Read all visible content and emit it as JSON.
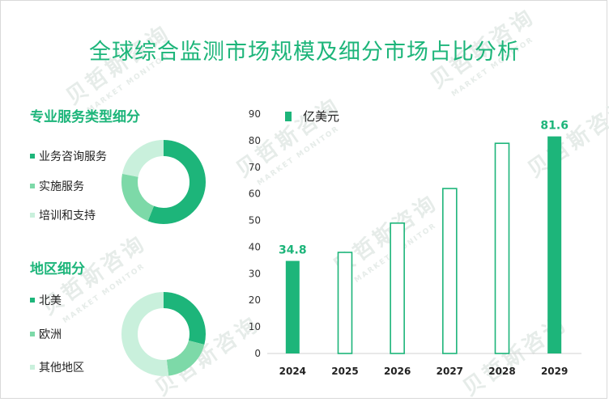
{
  "title": "全球综合监测市场规模及细分市场占比分析",
  "service_section": {
    "title": "专业服务类型细分",
    "items": [
      {
        "label": "业务咨询服务",
        "color": "#1db57a",
        "share": 0.56
      },
      {
        "label": "实施服务",
        "color": "#7dd9a8",
        "share": 0.22
      },
      {
        "label": "培训和支持",
        "color": "#c9f0dc",
        "share": 0.22
      }
    ]
  },
  "region_section": {
    "title": "地区细分",
    "items": [
      {
        "label": "北美",
        "color": "#1db57a",
        "share": 0.29
      },
      {
        "label": "欧洲",
        "color": "#7dd9a8",
        "share": 0.19
      },
      {
        "label": "其他地区",
        "color": "#c9f0dc",
        "share": 0.52
      }
    ]
  },
  "watermark": {
    "cn": "贝哲斯咨询",
    "en": "MARKET MONITOR"
  },
  "chart_data": {
    "type": "bar",
    "categories": [
      "2024",
      "2025",
      "2026",
      "2027",
      "2028",
      "2029"
    ],
    "series": [
      {
        "name": "亿美元",
        "values": [
          34.8,
          38.0,
          49.0,
          62.0,
          79.0,
          81.6
        ],
        "filled": [
          true,
          false,
          false,
          false,
          false,
          true
        ]
      }
    ],
    "data_labels": {
      "2024": "34.8",
      "2029": "81.6"
    },
    "ylim": [
      0,
      90
    ],
    "yticks": [
      "0",
      "10",
      "20",
      "30",
      "40",
      "50",
      "60",
      "70",
      "80",
      "90"
    ],
    "title": "",
    "xlabel": "",
    "ylabel": "",
    "legend_position": "top-left",
    "color": "#1db57a",
    "grid": false
  }
}
